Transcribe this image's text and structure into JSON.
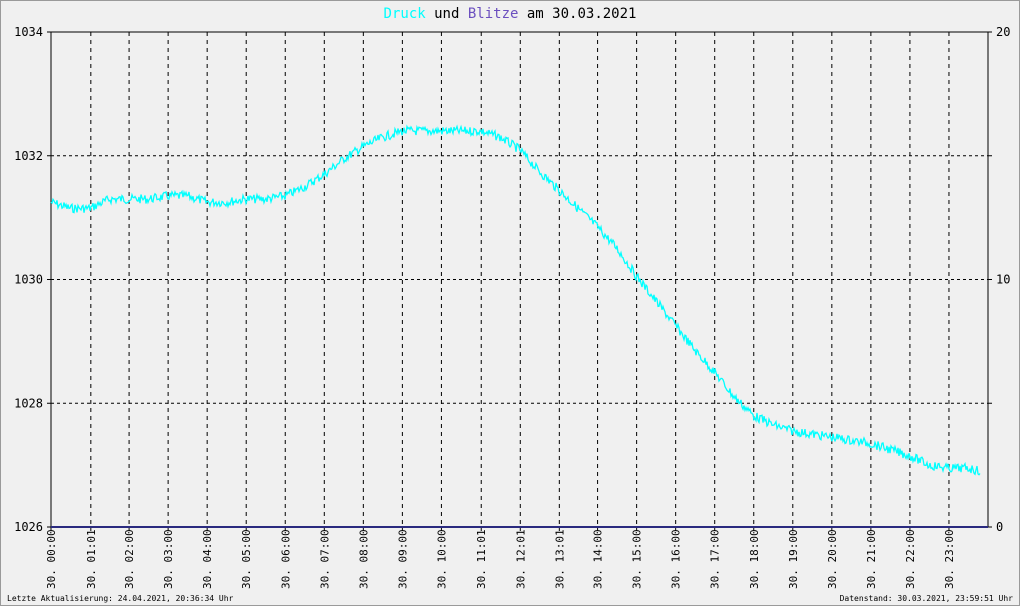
{
  "title": {
    "word1": "Druck",
    "connector": "und",
    "word2": "Blitze",
    "date_prefix": "am",
    "date": "30.03.2021"
  },
  "colors": {
    "pressure": "#00ffff",
    "lightning": "#6b4fbf",
    "baseline": "#2a2a7f",
    "grid": "#000000",
    "background": "#f0f0f0"
  },
  "footer": {
    "left": "Letzte Aktualisierung: 24.04.2021, 20:36:34 Uhr",
    "right": "Datenstand: 30.03.2021, 23:59:51 Uhr"
  },
  "chart_data": {
    "type": "line",
    "grid": true,
    "x_ticks": [
      "30. 00:00",
      "30. 01:01",
      "30. 02:00",
      "30. 03:00",
      "30. 04:00",
      "30. 05:00",
      "30. 06:00",
      "30. 07:00",
      "30. 08:00",
      "30. 09:00",
      "30. 10:00",
      "30. 11:01",
      "30. 12:01",
      "30. 13:01",
      "30. 14:00",
      "30. 15:00",
      "30. 16:00",
      "30. 17:00",
      "30. 18:00",
      "30. 19:00",
      "30. 20:00",
      "30. 21:00",
      "30. 22:00",
      "30. 23:00"
    ],
    "x_tick_hours": [
      0,
      1.02,
      2,
      3,
      4,
      5,
      6,
      7,
      8,
      9,
      10,
      11.02,
      12.02,
      13.02,
      14,
      15,
      16,
      17,
      18,
      19,
      20,
      21,
      22,
      23
    ],
    "xlim": [
      0,
      24
    ],
    "y_left": {
      "ylim": [
        1026,
        1034
      ],
      "ticks": [
        1026,
        1028,
        1030,
        1032,
        1034
      ]
    },
    "y_right": {
      "ylim": [
        0,
        20
      ],
      "ticks": [
        0,
        10,
        20
      ]
    },
    "series": [
      {
        "name": "Druck",
        "axis": "left",
        "x_hours": [
          0,
          0.5,
          1,
          1.5,
          2,
          2.5,
          3,
          3.5,
          4,
          4.5,
          5,
          5.5,
          6,
          6.5,
          7,
          7.5,
          8,
          8.5,
          9,
          9.5,
          10,
          10.5,
          11,
          11.5,
          12,
          12.5,
          13,
          13.5,
          14,
          14.5,
          15,
          15.5,
          16,
          16.5,
          17,
          17.5,
          18,
          18.5,
          19,
          19.5,
          20,
          20.5,
          21,
          21.5,
          22,
          22.5,
          23,
          23.5,
          23.8
        ],
        "values": [
          1031.25,
          1031.15,
          1031.15,
          1031.3,
          1031.3,
          1031.3,
          1031.35,
          1031.35,
          1031.25,
          1031.25,
          1031.3,
          1031.3,
          1031.35,
          1031.5,
          1031.7,
          1031.95,
          1032.15,
          1032.3,
          1032.4,
          1032.4,
          1032.4,
          1032.4,
          1032.4,
          1032.3,
          1032.1,
          1031.75,
          1031.45,
          1031.15,
          1030.85,
          1030.5,
          1030.05,
          1029.65,
          1029.25,
          1028.85,
          1028.5,
          1028.1,
          1027.8,
          1027.65,
          1027.55,
          1027.5,
          1027.45,
          1027.4,
          1027.35,
          1027.25,
          1027.15,
          1027.0,
          1026.95,
          1026.95,
          1026.9
        ]
      },
      {
        "name": "Blitze",
        "axis": "right",
        "x_hours": [
          0,
          24
        ],
        "values": [
          0,
          0
        ]
      }
    ]
  }
}
